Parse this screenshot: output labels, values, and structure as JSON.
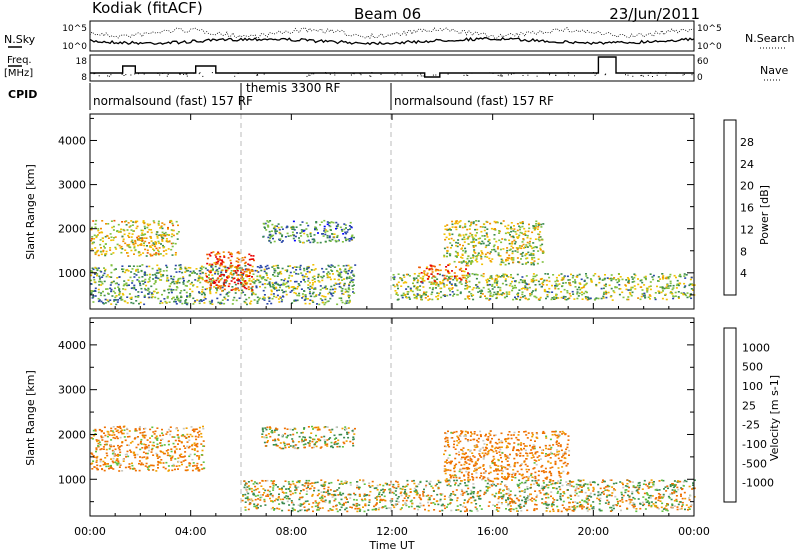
{
  "header": {
    "station": "Kodiak (fitACF)",
    "beam": "Beam 06",
    "date": "23/Jun/2011"
  },
  "labels": {
    "nsky": "N.Sky",
    "nsearch": "N.Search",
    "freq": "Freq.",
    "freq_unit": "[MHz]",
    "nave": "Nave",
    "cpid": "CPID"
  },
  "noise_panel": {
    "left_ticks": [
      "10^5",
      "10^0"
    ],
    "right_ticks": [
      "10^5",
      "10^0"
    ]
  },
  "freq_panel": {
    "left_ticks": [
      "18",
      "8"
    ],
    "right_ticks": [
      "60",
      "0"
    ]
  },
  "cpid": {
    "segments": [
      {
        "label": "normalsound (fast) 157 RF"
      },
      {
        "label": "themis 3300 RF"
      },
      {
        "label": "normalsound (fast) 157 RF"
      }
    ]
  },
  "axes": {
    "x_ticks": [
      "00:00",
      "04:00",
      "08:00",
      "12:00",
      "16:00",
      "20:00",
      "00:00"
    ],
    "xlabel": "Time UT",
    "ylabel": "Slant Range [km]",
    "y_ticks": [
      "1000",
      "2000",
      "3000",
      "4000"
    ]
  },
  "power_scale": {
    "label": "Power [dB]",
    "ticks": [
      "4",
      "8",
      "12",
      "16",
      "20",
      "24",
      "28"
    ],
    "colors": [
      "#0000ff",
      "#2846a8",
      "#3a8a4e",
      "#80c040",
      "#f0c000",
      "#f09000",
      "#ee5a00",
      "#e80000"
    ]
  },
  "velocity_scale": {
    "label": "Velocity [m s-1]",
    "ticks": [
      "1000",
      "500",
      "100",
      "25",
      "-25",
      "-100",
      "-500",
      "-1000"
    ],
    "colors": [
      "#1e3cc8",
      "#2f6aa0",
      "#3a8a4e",
      "#60c040",
      "#c8c8c0",
      "#f0a000",
      "#ee7000",
      "#e84000",
      "#e80000"
    ]
  },
  "chart_data": [
    {
      "type": "heatmap",
      "title": "Power",
      "xlabel": "Time UT",
      "ylabel": "Slant Range [km]",
      "xlim": [
        0,
        24
      ],
      "ylim": [
        180,
        4600
      ],
      "clabel": "Power [dB]",
      "clim": [
        0,
        30
      ],
      "regions": [
        {
          "t": [
            0,
            10.5
          ],
          "r": [
            300,
            1200
          ],
          "value": 12
        },
        {
          "t": [
            0,
            3.5
          ],
          "r": [
            1400,
            2200
          ],
          "value": 18
        },
        {
          "t": [
            4.5,
            6.5
          ],
          "r": [
            600,
            1500
          ],
          "value": 26
        },
        {
          "t": [
            6.8,
            10.5
          ],
          "r": [
            1700,
            2200
          ],
          "value": 10
        },
        {
          "t": [
            12,
            24
          ],
          "r": [
            400,
            1000
          ],
          "value": 14
        },
        {
          "t": [
            13,
            15
          ],
          "r": [
            800,
            1200
          ],
          "value": 24
        },
        {
          "t": [
            14,
            18
          ],
          "r": [
            1200,
            2200
          ],
          "value": 16
        }
      ]
    },
    {
      "type": "heatmap",
      "title": "Velocity",
      "xlabel": "Time UT",
      "ylabel": "Slant Range [km]",
      "xlim": [
        0,
        24
      ],
      "ylim": [
        180,
        4600
      ],
      "clabel": "Velocity [m s-1]",
      "clim": [
        -1000,
        1000
      ],
      "regions": [
        {
          "t": [
            0,
            4.5
          ],
          "r": [
            1200,
            2200
          ],
          "value": -150
        },
        {
          "t": [
            6,
            13
          ],
          "r": [
            300,
            1000
          ],
          "value": 0
        },
        {
          "t": [
            6.8,
            10.5
          ],
          "r": [
            1700,
            2200
          ],
          "value": 0
        },
        {
          "t": [
            13,
            24
          ],
          "r": [
            300,
            1000
          ],
          "value": 0
        },
        {
          "t": [
            14,
            19
          ],
          "r": [
            1000,
            2100
          ],
          "value": -200
        }
      ]
    }
  ]
}
